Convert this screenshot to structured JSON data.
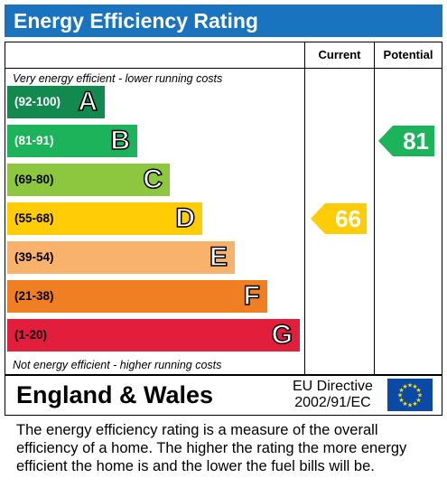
{
  "title": "Energy Efficiency Rating",
  "columns": {
    "current": "Current",
    "potential": "Potential"
  },
  "top_note": "Very energy efficient - lower running costs",
  "bottom_note": "Not energy efficient - higher running costs",
  "chart_data": {
    "type": "bar",
    "bands": [
      {
        "range": "(92-100)",
        "letter": "A",
        "color": "#128a4f",
        "level": 1
      },
      {
        "range": "(81-91)",
        "letter": "B",
        "color": "#1db35b",
        "level": 2
      },
      {
        "range": "(69-80)",
        "letter": "C",
        "color": "#8dc63f",
        "level": 3
      },
      {
        "range": "(55-68)",
        "letter": "D",
        "color": "#ffcc05",
        "level": 4
      },
      {
        "range": "(39-54)",
        "letter": "E",
        "color": "#f8b26c",
        "level": 5
      },
      {
        "range": "(21-38)",
        "letter": "F",
        "color": "#f07f24",
        "level": 6
      },
      {
        "range": "(1-20)",
        "letter": "G",
        "color": "#e31d3c",
        "level": 7
      }
    ],
    "current": {
      "value": "66",
      "band": "D",
      "color": "#ffcc05"
    },
    "potential": {
      "value": "81",
      "band": "B",
      "color": "#1db35b"
    }
  },
  "footer": {
    "region": "England & Wales",
    "directive_line1": "EU Directive",
    "directive_line2": "2002/91/EC"
  },
  "description": "The energy efficiency rating is a measure of the overall efficiency of a home.  The higher the rating the more energy efficient the home is and the lower the fuel bills will be."
}
